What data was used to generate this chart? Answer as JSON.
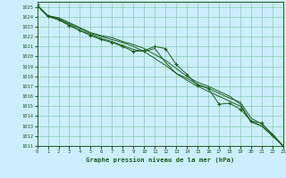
{
  "title": "Graphe pression niveau de la mer (hPa)",
  "background_color": "#cceeff",
  "grid_color": "#88ccaa",
  "line_color": "#1a5c1a",
  "xlim": [
    0,
    23
  ],
  "ylim": [
    1011,
    1025.5
  ],
  "yticks": [
    1011,
    1012,
    1013,
    1014,
    1015,
    1016,
    1017,
    1018,
    1019,
    1020,
    1021,
    1022,
    1023,
    1024,
    1025
  ],
  "xticks": [
    0,
    1,
    2,
    3,
    4,
    5,
    6,
    7,
    8,
    9,
    10,
    11,
    12,
    13,
    14,
    15,
    16,
    17,
    18,
    19,
    20,
    21,
    22,
    23
  ],
  "line1_x": [
    0,
    1,
    2,
    3,
    4,
    5,
    6,
    7,
    8,
    9,
    10,
    11,
    12,
    13,
    14,
    15,
    16,
    17,
    18,
    19,
    20,
    21,
    22,
    23
  ],
  "line1_y": [
    1025.1,
    1024.0,
    1023.7,
    1023.2,
    1022.6,
    1022.2,
    1021.8,
    1021.5,
    1021.1,
    1020.7,
    1020.5,
    1020.8,
    1019.4,
    1018.3,
    1017.8,
    1017.2,
    1016.8,
    1016.3,
    1015.8,
    1015.4,
    1013.8,
    1013.2,
    1012.2,
    1011.0
  ],
  "line2_x": [
    0,
    1,
    2,
    3,
    4,
    5,
    6,
    7,
    8,
    9,
    10,
    11,
    12,
    13,
    14,
    15,
    16,
    17,
    18,
    19,
    20,
    21,
    22,
    23
  ],
  "line2_y": [
    1025.1,
    1024.1,
    1023.8,
    1023.3,
    1022.8,
    1022.3,
    1022.0,
    1021.7,
    1021.4,
    1021.0,
    1020.5,
    1019.8,
    1019.1,
    1018.3,
    1017.6,
    1017.0,
    1016.5,
    1016.0,
    1015.5,
    1015.0,
    1013.5,
    1013.0,
    1012.0,
    1011.0
  ],
  "line3_x": [
    0,
    1,
    2,
    3,
    4,
    5,
    6,
    7,
    8,
    9,
    10,
    11,
    12,
    13,
    14,
    15,
    16,
    17,
    18,
    19,
    20,
    21,
    22,
    23
  ],
  "line3_y": [
    1025.1,
    1024.1,
    1023.9,
    1023.4,
    1022.9,
    1022.4,
    1022.1,
    1021.9,
    1021.5,
    1021.2,
    1020.8,
    1020.2,
    1019.6,
    1018.8,
    1018.0,
    1017.4,
    1017.0,
    1016.5,
    1016.0,
    1015.2,
    1013.4,
    1013.0,
    1012.1,
    1011.0
  ],
  "line4_x": [
    0,
    1,
    2,
    3,
    4,
    5,
    6,
    7,
    8,
    9,
    10,
    11,
    12,
    13,
    14,
    15,
    16,
    17,
    18,
    19,
    20,
    21,
    22,
    23
  ],
  "line4_y": [
    1025.2,
    1024.1,
    1023.7,
    1023.1,
    1022.6,
    1022.1,
    1021.7,
    1021.4,
    1021.0,
    1020.5,
    1020.6,
    1021.0,
    1020.8,
    1019.2,
    1018.2,
    1017.1,
    1016.8,
    1015.2,
    1015.3,
    1014.7,
    1013.5,
    1013.3,
    1012.1,
    1011.0
  ],
  "marker_x": [
    0,
    3,
    6,
    9,
    10,
    11,
    12,
    13,
    14,
    15,
    16,
    17,
    18,
    19,
    20,
    21,
    22,
    23
  ],
  "marker_y": [
    1025.2,
    1023.1,
    1021.7,
    1020.5,
    1020.6,
    1021.0,
    1020.8,
    1019.2,
    1018.2,
    1017.1,
    1016.8,
    1015.2,
    1015.3,
    1014.7,
    1013.5,
    1013.3,
    1012.1,
    1011.0
  ]
}
